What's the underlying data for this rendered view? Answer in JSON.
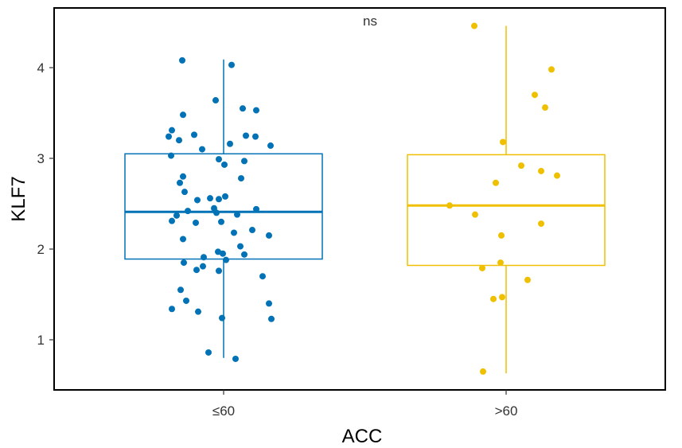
{
  "chart_data": {
    "type": "box",
    "title": "",
    "xlabel": "ACC",
    "ylabel": "KLF7",
    "annotation": "ns",
    "ylim": [
      0.45,
      4.6
    ],
    "yticks": [
      1,
      2,
      3,
      4
    ],
    "grid": false,
    "legend": "none",
    "groups": [
      {
        "name": "≤60",
        "color": "#0072B5",
        "box": {
          "q1": 1.89,
          "median": 2.41,
          "q3": 3.05,
          "whisker_low": 0.8,
          "whisker_high": 4.09
        },
        "points": [
          4.08,
          4.03,
          3.64,
          3.55,
          3.53,
          3.48,
          3.31,
          3.26,
          3.25,
          3.24,
          3.24,
          3.2,
          3.16,
          3.14,
          3.1,
          3.03,
          2.99,
          2.97,
          2.93,
          2.8,
          2.78,
          2.73,
          2.63,
          2.58,
          2.56,
          2.55,
          2.54,
          2.45,
          2.44,
          2.42,
          2.4,
          2.38,
          2.37,
          2.31,
          2.3,
          2.29,
          2.21,
          2.18,
          2.15,
          2.11,
          2.03,
          1.97,
          1.95,
          1.94,
          1.91,
          1.88,
          1.85,
          1.81,
          1.77,
          1.76,
          1.7,
          1.55,
          1.43,
          1.4,
          1.34,
          1.31,
          1.24,
          1.23,
          0.86,
          0.79
        ]
      },
      {
        "name": ">60",
        "color": "#EFC000",
        "box": {
          "q1": 1.82,
          "median": 2.48,
          "q3": 3.04,
          "whisker_low": 0.63,
          "whisker_high": 4.46
        },
        "points": [
          4.46,
          3.98,
          3.7,
          3.56,
          3.18,
          2.92,
          2.86,
          2.81,
          2.73,
          2.48,
          2.38,
          2.28,
          2.15,
          1.85,
          1.79,
          1.66,
          1.47,
          1.45,
          0.65
        ]
      }
    ]
  }
}
